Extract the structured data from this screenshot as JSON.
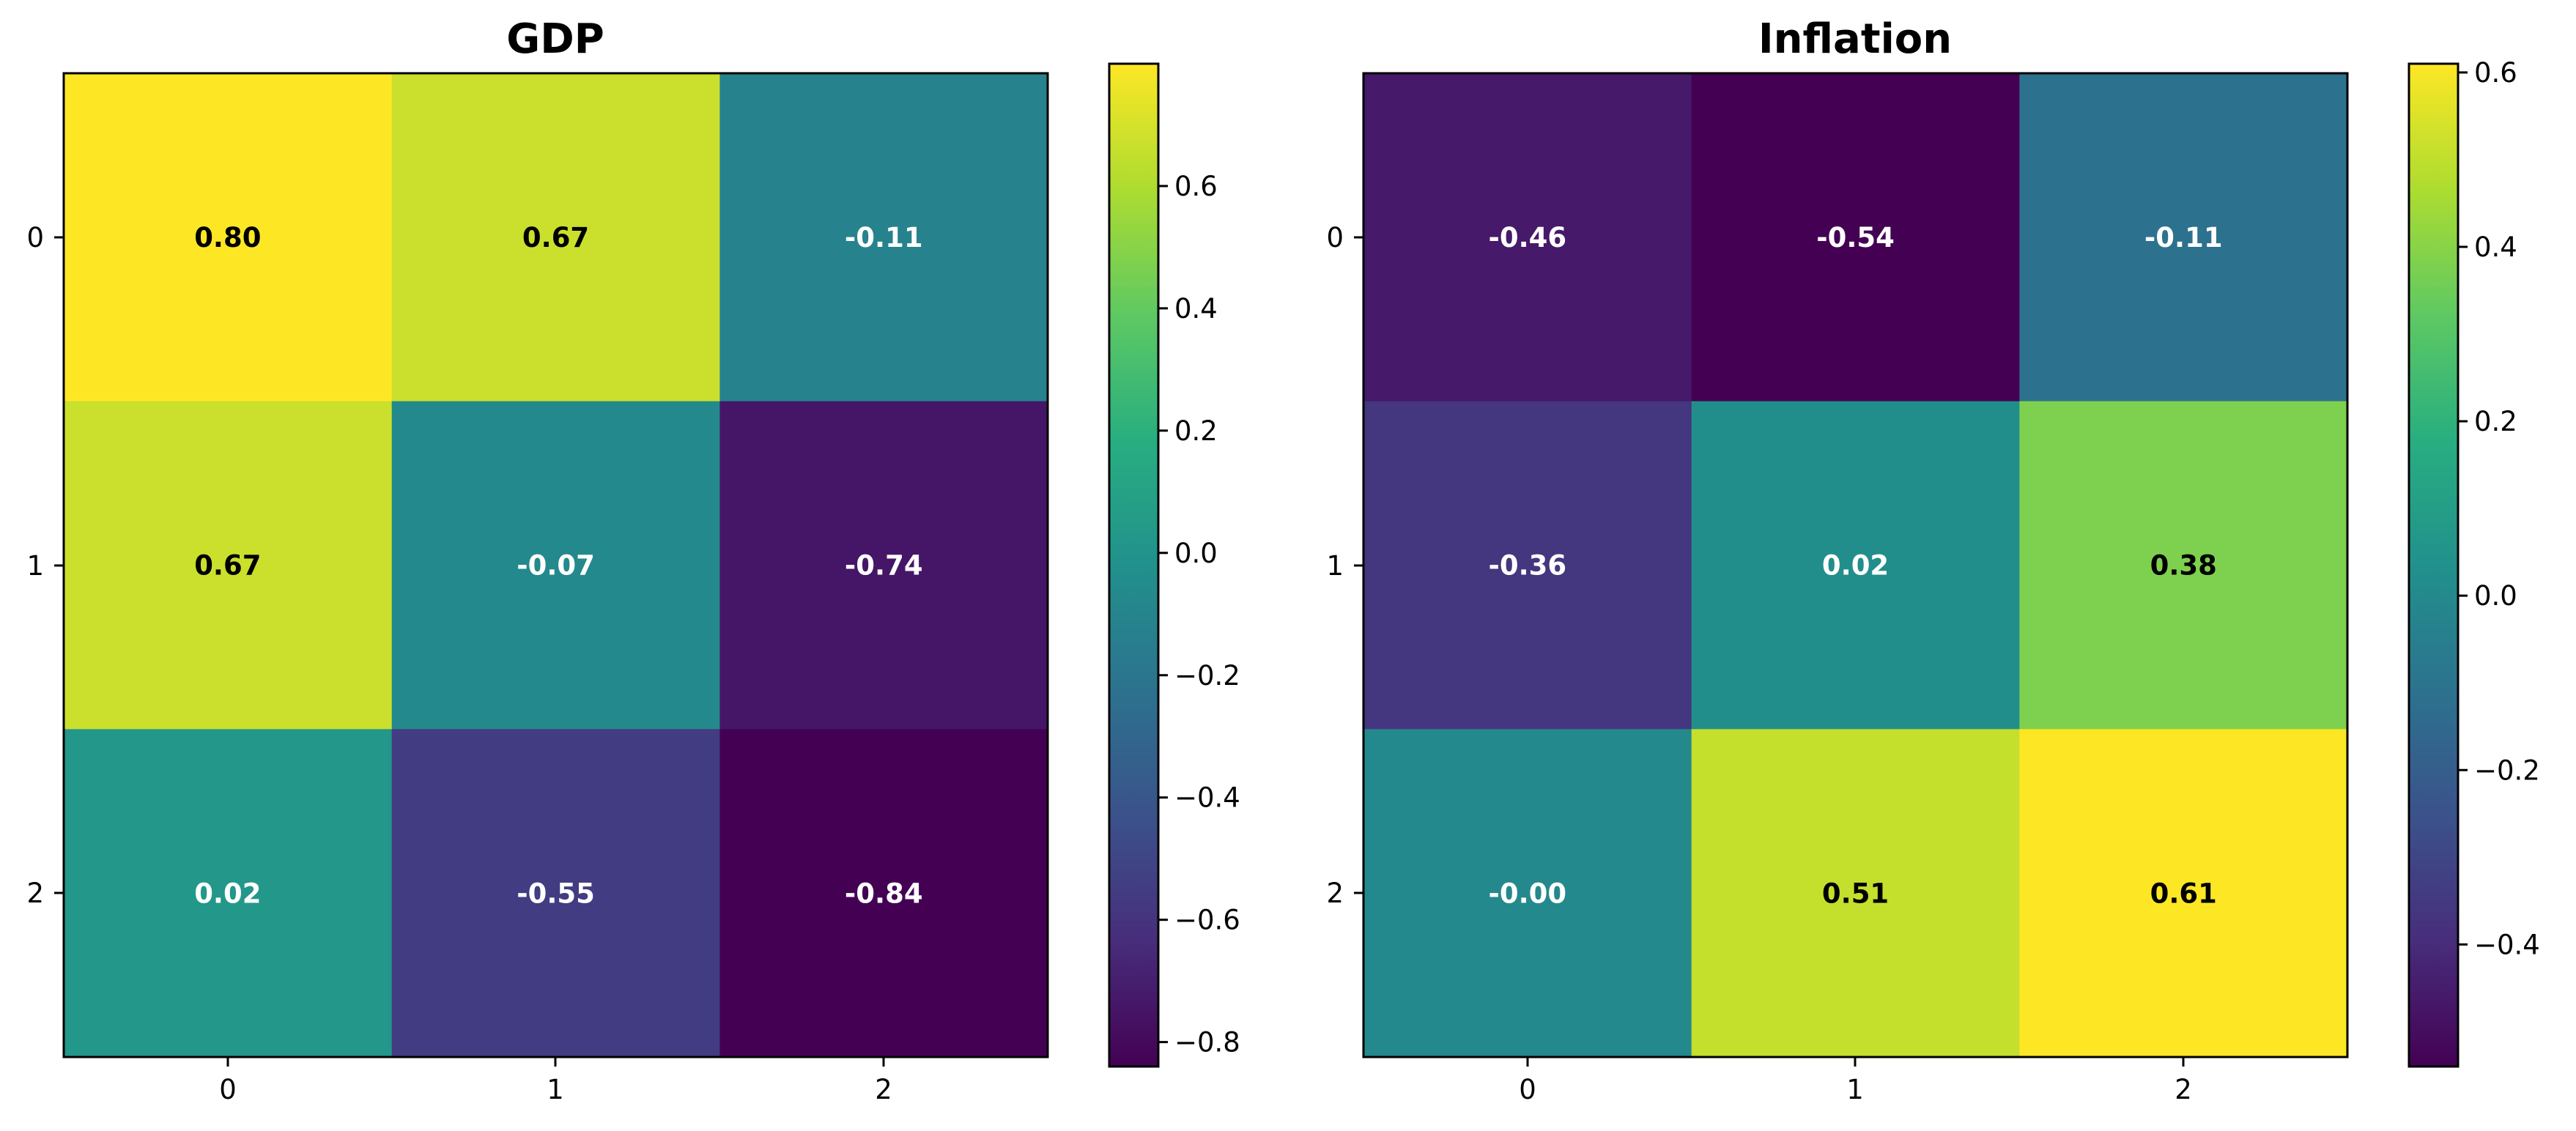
{
  "chart_data": [
    {
      "type": "heatmap",
      "title": "GDP",
      "xlabel": "",
      "ylabel": "",
      "x_categories": [
        "0",
        "1",
        "2"
      ],
      "y_categories": [
        "0",
        "1",
        "2"
      ],
      "values": [
        [
          0.8,
          0.67,
          -0.11
        ],
        [
          0.67,
          -0.07,
          -0.74
        ],
        [
          0.02,
          -0.55,
          -0.84
        ]
      ],
      "value_labels": [
        [
          "0.80",
          "0.67",
          "-0.11"
        ],
        [
          "0.67",
          "-0.07",
          "-0.74"
        ],
        [
          "0.02",
          "-0.55",
          "-0.84"
        ]
      ],
      "colormap": "viridis",
      "colorbar": {
        "range": [
          -0.84,
          0.8
        ],
        "ticks": [
          0.6,
          0.4,
          0.2,
          0.0,
          -0.2,
          -0.4,
          -0.6,
          -0.8
        ],
        "tick_labels": [
          "0.6",
          "0.4",
          "0.2",
          "0.0",
          "−0.2",
          "−0.4",
          "−0.6",
          "−0.8"
        ]
      }
    },
    {
      "type": "heatmap",
      "title": "Inflation",
      "xlabel": "",
      "ylabel": "",
      "x_categories": [
        "0",
        "1",
        "2"
      ],
      "y_categories": [
        "0",
        "1",
        "2"
      ],
      "values": [
        [
          -0.46,
          -0.54,
          -0.11
        ],
        [
          -0.36,
          0.02,
          0.38
        ],
        [
          -0.0,
          0.51,
          0.61
        ]
      ],
      "value_labels": [
        [
          "-0.46",
          "-0.54",
          "-0.11"
        ],
        [
          "-0.36",
          "0.02",
          "0.38"
        ],
        [
          "-0.00",
          "0.51",
          "0.61"
        ]
      ],
      "colormap": "viridis",
      "colorbar": {
        "range": [
          -0.54,
          0.61
        ],
        "ticks": [
          0.6,
          0.4,
          0.2,
          0.0,
          -0.2,
          -0.4
        ],
        "tick_labels": [
          "0.6",
          "0.4",
          "0.2",
          "0.0",
          "−0.2",
          "−0.4"
        ]
      }
    }
  ]
}
